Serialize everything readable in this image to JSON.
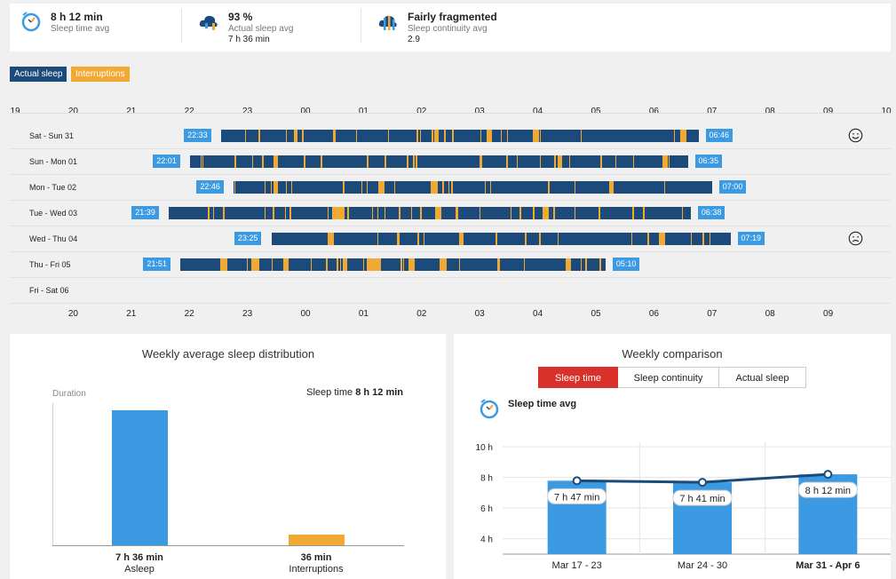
{
  "summary": {
    "sleep_time": {
      "value": "8 h 12 min",
      "label": "Sleep time avg"
    },
    "actual_sleep": {
      "value": "93 %",
      "label": "Actual sleep avg",
      "extra": "7 h 36 min"
    },
    "continuity": {
      "value": "Fairly fragmented",
      "label": "Sleep continuity avg",
      "extra": "2.9"
    }
  },
  "legend": {
    "actual": "Actual sleep",
    "interruptions": "Interruptions"
  },
  "colors": {
    "sleep": "#1c4a7a",
    "interruption": "#f2a934",
    "tag": "#3b9ae1",
    "active": "#d9302a"
  },
  "timeline": {
    "top_ticks": [
      "19",
      "20",
      "21",
      "22",
      "23",
      "00",
      "01",
      "02",
      "03",
      "04",
      "05",
      "06",
      "07",
      "08",
      "09",
      "10"
    ],
    "bottom_ticks": [
      "20",
      "21",
      "22",
      "23",
      "00",
      "01",
      "02",
      "03",
      "04",
      "05",
      "06",
      "07",
      "08",
      "09"
    ],
    "rows": [
      {
        "label": "Sat - Sun 31",
        "start": "22:33",
        "end": "06:46",
        "face": "happy"
      },
      {
        "label": "Sun - Mon 01",
        "start": "22:01",
        "end": "06:35"
      },
      {
        "label": "Mon - Tue 02",
        "start": "22:46",
        "end": "07:00"
      },
      {
        "label": "Tue - Wed 03",
        "start": "21:39",
        "end": "06:38"
      },
      {
        "label": "Wed - Thu 04",
        "start": "23:25",
        "end": "07:19",
        "face": "sad"
      },
      {
        "label": "Thu - Fri 05",
        "start": "21:51",
        "end": "05:10"
      },
      {
        "label": "Fri - Sat 06"
      }
    ]
  },
  "distribution": {
    "title": "Weekly average sleep distribution",
    "axis_label": "Duration",
    "summary_prefix": "Sleep time",
    "summary_value": "8 h 12 min",
    "chart_data": {
      "type": "bar",
      "categories": [
        "Asleep",
        "Interruptions"
      ],
      "value_labels": [
        "7 h 36 min",
        "36 min"
      ],
      "values_min": [
        456,
        36
      ]
    }
  },
  "comparison": {
    "title": "Weekly comparison",
    "tabs": [
      "Sleep time",
      "Sleep continuity",
      "Actual sleep"
    ],
    "metric_title": "Sleep time avg",
    "chart_data": {
      "type": "bar",
      "categories": [
        "Mar 17 - 23",
        "Mar 24 - 30",
        "Mar 31 - Apr 6"
      ],
      "values": [
        7.78,
        7.68,
        8.2
      ],
      "value_labels": [
        "7 h 47 min",
        "7 h 41 min",
        "8 h 12 min"
      ],
      "y_ticks": [
        "10 h",
        "8 h",
        "6 h",
        "4 h"
      ],
      "ylim": [
        3,
        10
      ]
    }
  }
}
